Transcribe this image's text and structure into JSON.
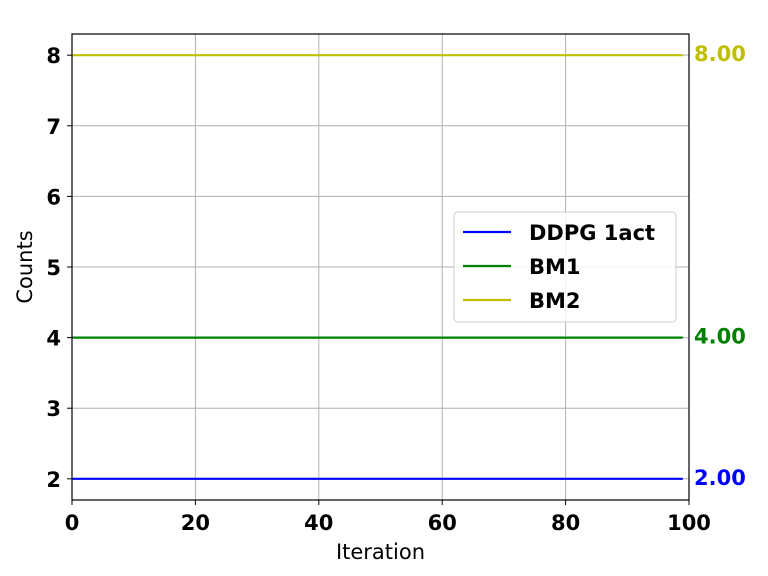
{
  "chart_data": {
    "type": "line",
    "title": "",
    "xlabel": "Iteration",
    "ylabel": "Counts",
    "xlim": [
      0,
      100
    ],
    "ylim": [
      1.7,
      8.3
    ],
    "xticks": [
      0,
      20,
      40,
      60,
      80,
      100
    ],
    "xtick_labels": [
      "0",
      "20",
      "40",
      "60",
      "80",
      "100"
    ],
    "yticks": [
      2,
      3,
      4,
      5,
      6,
      7,
      8
    ],
    "ytick_labels": [
      "2",
      "3",
      "4",
      "5",
      "6",
      "7",
      "8"
    ],
    "grid": true,
    "legend_position": "center-right",
    "series": [
      {
        "name": "DDPG 1act",
        "color": "#0000ff",
        "x": [
          0,
          99
        ],
        "y": [
          2,
          2
        ],
        "end_label": "2.00"
      },
      {
        "name": "BM1",
        "color": "#008000",
        "x": [
          0,
          99
        ],
        "y": [
          4,
          4
        ],
        "end_label": "4.00"
      },
      {
        "name": "BM2",
        "color": "#bfbf00",
        "x": [
          0,
          99
        ],
        "y": [
          8,
          8
        ],
        "end_label": "8.00"
      }
    ]
  }
}
